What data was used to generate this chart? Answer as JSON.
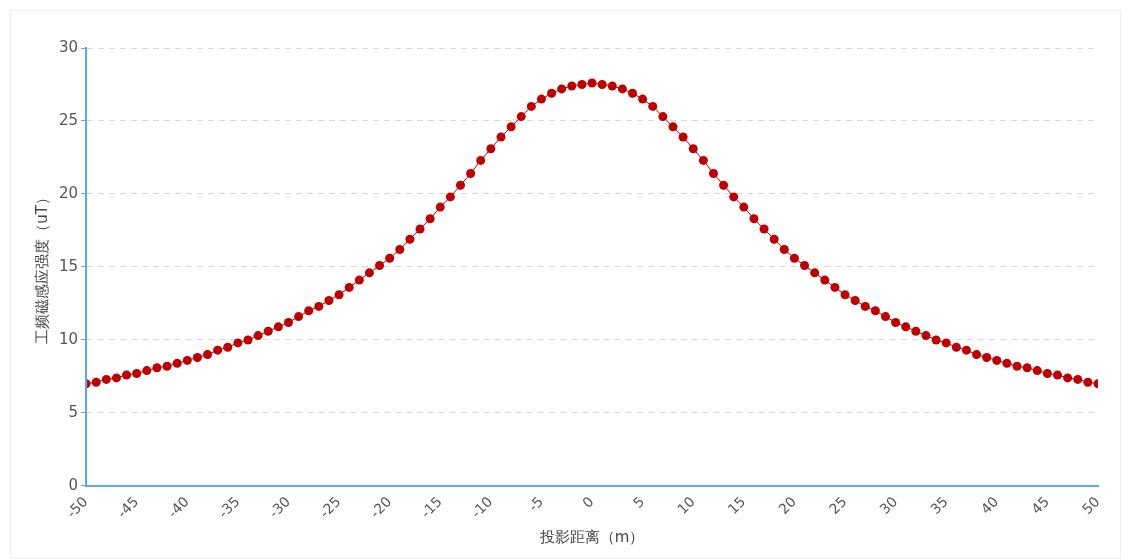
{
  "chart_data": {
    "type": "line",
    "xlabel": "投影距离（m）",
    "ylabel": "工频磁感应强度（uT）",
    "x": [
      -50,
      -49,
      -48,
      -47,
      -46,
      -45,
      -44,
      -43,
      -42,
      -41,
      -40,
      -39,
      -38,
      -37,
      -36,
      -35,
      -34,
      -33,
      -32,
      -31,
      -30,
      -29,
      -28,
      -27,
      -26,
      -25,
      -24,
      -23,
      -22,
      -21,
      -20,
      -19,
      -18,
      -17,
      -16,
      -15,
      -14,
      -13,
      -12,
      -11,
      -10,
      -9,
      -8,
      -7,
      -6,
      -5,
      -4,
      -3,
      -2,
      -1,
      0,
      1,
      2,
      3,
      4,
      5,
      6,
      7,
      8,
      9,
      10,
      11,
      12,
      13,
      14,
      15,
      16,
      17,
      18,
      19,
      20,
      21,
      22,
      23,
      24,
      25,
      26,
      27,
      28,
      29,
      30,
      31,
      32,
      33,
      34,
      35,
      36,
      37,
      38,
      39,
      40,
      41,
      42,
      43,
      44,
      45,
      46,
      47,
      48,
      49,
      50
    ],
    "series": [
      {
        "color": "#c00000",
        "values": [
          7.0,
          7.1,
          7.3,
          7.4,
          7.6,
          7.7,
          7.9,
          8.1,
          8.2,
          8.4,
          8.6,
          8.8,
          9.0,
          9.3,
          9.5,
          9.8,
          10.0,
          10.3,
          10.6,
          10.9,
          11.2,
          11.6,
          12.0,
          12.3,
          12.7,
          13.1,
          13.6,
          14.1,
          14.6,
          15.1,
          15.6,
          16.2,
          16.9,
          17.6,
          18.3,
          19.1,
          19.8,
          20.6,
          21.4,
          22.3,
          23.1,
          23.9,
          24.6,
          25.3,
          26.0,
          26.5,
          26.9,
          27.2,
          27.4,
          27.5,
          27.6,
          27.5,
          27.4,
          27.2,
          26.9,
          26.5,
          26.0,
          25.3,
          24.6,
          23.9,
          23.1,
          22.3,
          21.4,
          20.6,
          19.8,
          19.1,
          18.3,
          17.6,
          16.9,
          16.2,
          15.6,
          15.1,
          14.6,
          14.1,
          13.6,
          13.1,
          12.7,
          12.3,
          12.0,
          11.6,
          11.2,
          10.9,
          10.6,
          10.3,
          10.0,
          9.8,
          9.5,
          9.3,
          9.0,
          8.8,
          8.6,
          8.4,
          8.2,
          8.1,
          7.9,
          7.7,
          7.6,
          7.4,
          7.3,
          7.1,
          7.0
        ]
      }
    ],
    "xlim": [
      -50,
      50
    ],
    "xticks": [
      -50,
      -45,
      -40,
      -35,
      -30,
      -25,
      -20,
      -15,
      -10,
      -5,
      0,
      5,
      10,
      15,
      20,
      25,
      30,
      35,
      40,
      45,
      50
    ],
    "ylim": [
      0,
      30
    ],
    "yticks": [
      0,
      5,
      10,
      15,
      20,
      25,
      30
    ],
    "grid": "y",
    "marker": "circle",
    "line_style": "solid"
  }
}
